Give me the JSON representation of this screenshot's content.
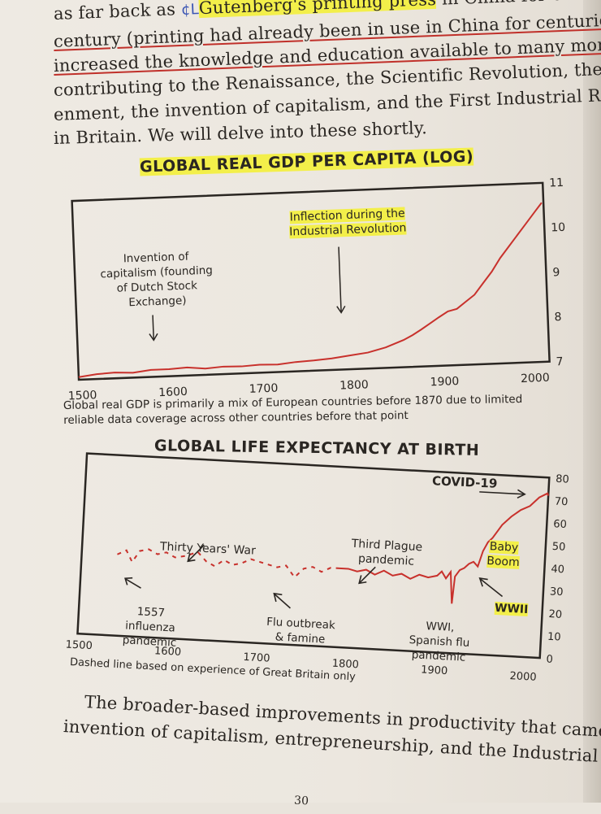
{
  "top_text": {
    "line1_a": "as far back as",
    "line1_ink": "¢L",
    "line1_b": "Gutenberg's printing press",
    "line1_c": " in China for centuries), which",
    "line2": "century (printing had already been in use in China for centuries),",
    "line3": "increased the knowledge and education available to many more people,",
    "line4": "contributing to the Renaissance, the Scientific Revolution, the Enlight-",
    "line5": "enment, the invention of capitalism, and the First Industrial Revolution",
    "line6": "in Britain. We will delve into these shortly."
  },
  "chart1": {
    "title": "GLOBAL REAL GDP PER CAPITA (LOG)",
    "annotation_capitalism": [
      "Invention of",
      "capitalism (founding",
      "of Dutch Stock",
      "Exchange)"
    ],
    "annotation_inflection": [
      "Inflection during the",
      "Industrial Revolution"
    ],
    "footnote": [
      "Global real GDP is primarily a mix of European countries before 1870 due to limited",
      "reliable data coverage across other countries before that point"
    ]
  },
  "chart2": {
    "title": "GLOBAL LIFE EXPECTANCY AT BIRTH",
    "annotations": {
      "covid": "COVID-19",
      "thirty_years": "Thirty Years' War",
      "third_plague": [
        "Third Plague",
        "pandemic"
      ],
      "baby_boom": [
        "Baby",
        "Boom"
      ],
      "wwii": "WWII",
      "influenza": [
        "1557 influenza",
        "pandemic"
      ],
      "flu_famine": [
        "Flu outbreak",
        "& famine"
      ],
      "wwi": [
        "WWI,",
        "Spanish flu",
        "pandemic"
      ]
    },
    "footnote": "Dashed line based on experience of Great Britain only"
  },
  "chart_data": [
    {
      "type": "line",
      "title": "GLOBAL REAL GDP PER CAPITA (LOG)",
      "xlabel": "",
      "ylabel": "",
      "xlim": [
        1500,
        2020
      ],
      "ylim": [
        7,
        11
      ],
      "x_ticks": [
        1500,
        1600,
        1700,
        1800,
        1900,
        2000
      ],
      "y_ticks": [
        7,
        8,
        9,
        10,
        11
      ],
      "series": [
        {
          "name": "Global real GDP per capita (log)",
          "color": "#c8312c",
          "x": [
            1500,
            1520,
            1540,
            1560,
            1580,
            1600,
            1620,
            1640,
            1660,
            1680,
            1700,
            1720,
            1740,
            1760,
            1780,
            1800,
            1820,
            1840,
            1860,
            1870,
            1880,
            1890,
            1900,
            1910,
            1920,
            1930,
            1940,
            1950,
            1960,
            1970,
            1980,
            1990,
            2000,
            2010,
            2018
          ],
          "y": [
            6.95,
            7.0,
            7.02,
            7.0,
            7.05,
            7.05,
            7.07,
            7.03,
            7.06,
            7.05,
            7.07,
            7.06,
            7.1,
            7.12,
            7.15,
            7.2,
            7.25,
            7.35,
            7.5,
            7.6,
            7.72,
            7.85,
            7.98,
            8.1,
            8.15,
            8.3,
            8.45,
            8.7,
            8.95,
            9.25,
            9.5,
            9.75,
            10.0,
            10.25,
            10.45
          ]
        }
      ]
    },
    {
      "type": "line",
      "title": "GLOBAL LIFE EXPECTANCY AT BIRTH",
      "xlabel": "",
      "ylabel": "",
      "xlim": [
        1500,
        2020
      ],
      "ylim": [
        0,
        80
      ],
      "x_ticks": [
        1500,
        1600,
        1700,
        1800,
        1900,
        2000
      ],
      "y_ticks": [
        0,
        10,
        20,
        30,
        40,
        50,
        60,
        70,
        80
      ],
      "series": [
        {
          "name": "Great Britain (dashed)",
          "style": "dashed",
          "color": "#c8312c",
          "x": [
            1540,
            1550,
            1557,
            1565,
            1575,
            1585,
            1595,
            1605,
            1618,
            1630,
            1640,
            1650,
            1660,
            1670,
            1680,
            1690,
            1700,
            1710,
            1720,
            1730,
            1740,
            1750,
            1760,
            1770,
            1780,
            1790
          ],
          "y": [
            36,
            38,
            33,
            38,
            39,
            37,
            38,
            36,
            37,
            39,
            35,
            33,
            36,
            34,
            35,
            37,
            36,
            35,
            34,
            35,
            30,
            34,
            35,
            33,
            35,
            35
          ]
        },
        {
          "name": "Global (solid)",
          "style": "solid",
          "color": "#c8312c",
          "x": [
            1790,
            1800,
            1810,
            1820,
            1830,
            1840,
            1850,
            1860,
            1870,
            1880,
            1890,
            1900,
            1905,
            1910,
            1915,
            1918,
            1920,
            1925,
            1930,
            1935,
            1940,
            1945,
            1950,
            1955,
            1960,
            1970,
            1980,
            1990,
            2000,
            2010,
            2019,
            2020
          ],
          "y": [
            35,
            35,
            34,
            35,
            33,
            35,
            33,
            34,
            32,
            34,
            33,
            34,
            36,
            33,
            36,
            22,
            34,
            37,
            38,
            40,
            41,
            39,
            46,
            50,
            52,
            58,
            62,
            65,
            67,
            71,
            73,
            72
          ]
        }
      ]
    }
  ],
  "bottom_text": {
    "line1": "The broader-based improvements in productivity that came from the",
    "line2": "invention of capitalism, entrepreneurship, and the Industrial Revolution"
  },
  "page_number": "30",
  "colors": {
    "accent": "#c8312c",
    "highlight": "#f3ef4a",
    "pen_blue": "#3b55b4"
  }
}
